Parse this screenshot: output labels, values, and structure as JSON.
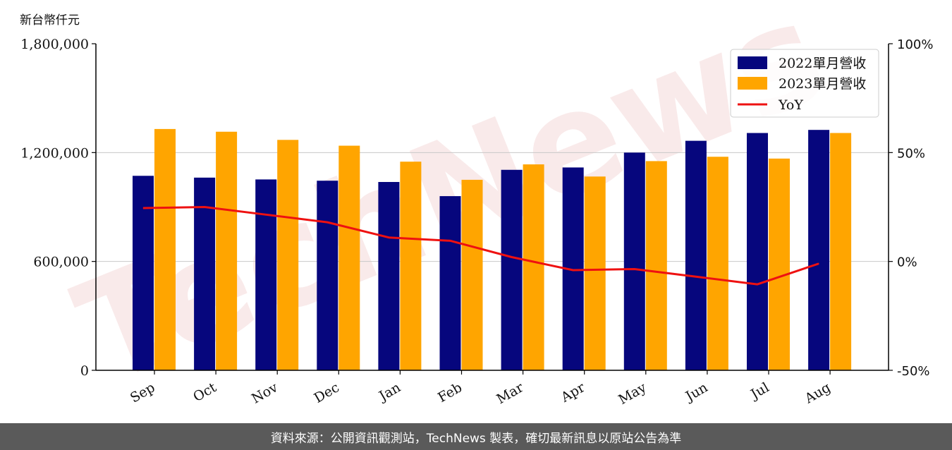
{
  "unit_label": "新台幣仟元",
  "footer_text": "資料來源：公開資訊觀測站，TechNews 製表，確切最新訊息以原站公告為準",
  "watermark_text": "TechNews",
  "colors": {
    "series_2022": "#06067d",
    "series_2023": "#ffa500",
    "yoy": "#ee1111",
    "grid": "#c8c8c8",
    "footer_bg": "#5a5a5a"
  },
  "chart_data": {
    "type": "bar",
    "categories": [
      "Sep",
      "Oct",
      "Nov",
      "Dec",
      "Jan",
      "Feb",
      "Mar",
      "Apr",
      "May",
      "Jun",
      "Jul",
      "Aug"
    ],
    "series": [
      {
        "name": "2022單月營收",
        "values": [
          1072000,
          1062000,
          1052000,
          1045000,
          1038000,
          960000,
          1105000,
          1118000,
          1200000,
          1265000,
          1308000,
          1325000
        ]
      },
      {
        "name": "2023單月營收",
        "values": [
          1330000,
          1315000,
          1270000,
          1238000,
          1150000,
          1050000,
          1135000,
          1068000,
          1153000,
          1177000,
          1167000,
          1308000
        ]
      }
    ],
    "line_series": {
      "name": "YoY",
      "axis": "right",
      "values": [
        24.5,
        25,
        21.5,
        18,
        11,
        9.5,
        2,
        -4,
        -3.5,
        -7,
        -10.5,
        -1
      ]
    },
    "yticks": [
      "0",
      "600,000",
      "1,200,000",
      "1,800,000"
    ],
    "ylim": [
      0,
      1800000
    ],
    "y2ticks": [
      "-50%",
      "0%",
      "50%",
      "100%"
    ],
    "y2lim": [
      -50,
      100
    ],
    "grid": "horizontal",
    "legend_position": "top-right",
    "xlabel": "",
    "ylabel": ""
  }
}
